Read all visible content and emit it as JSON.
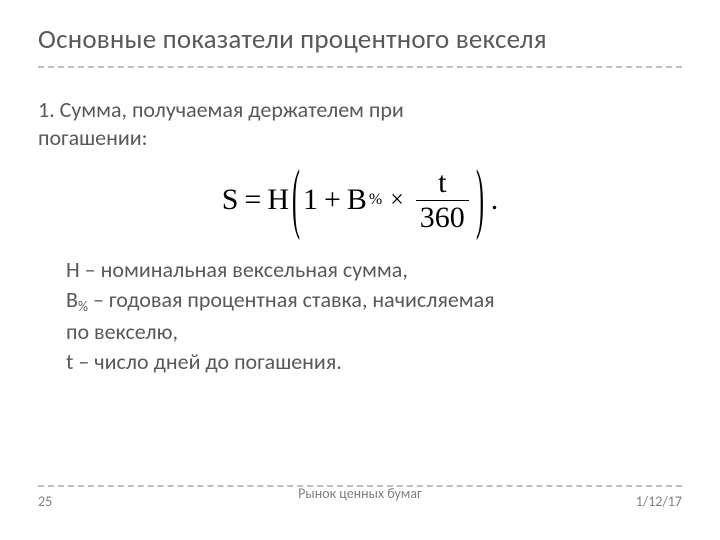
{
  "title": "Основные показатели процентного векселя",
  "section1_line1": "1. Сумма, получаемая держателем при",
  "section1_line2": "погашении:",
  "formula": {
    "S": "S",
    "eq": "=",
    "H": "Н",
    "lparen": "(",
    "one": "1",
    "plus": "+",
    "B": "В",
    "pct": "%",
    "mult": "×",
    "t": "t",
    "den": "360",
    "rparen": ")",
    "period": "."
  },
  "defs": {
    "l1": "Н – номинальная вексельная сумма,",
    "l2a": "В",
    "l2pct": "%",
    "l2b": " – годовая процентная ставка, начисляемая",
    "l3": "по векселю,",
    "l4": "t – число дней до погашения."
  },
  "footer": {
    "page": "25",
    "center": "Рынок ценных бумаг",
    "date": "1/12/17"
  },
  "style": {
    "bg": "#ffffff",
    "text": "#595959",
    "formula_color": "#000000",
    "dash_color": "#bfbfbf",
    "title_fs": 27,
    "body_fs": 22,
    "formula_fs": 30,
    "footer_fs": 14
  }
}
